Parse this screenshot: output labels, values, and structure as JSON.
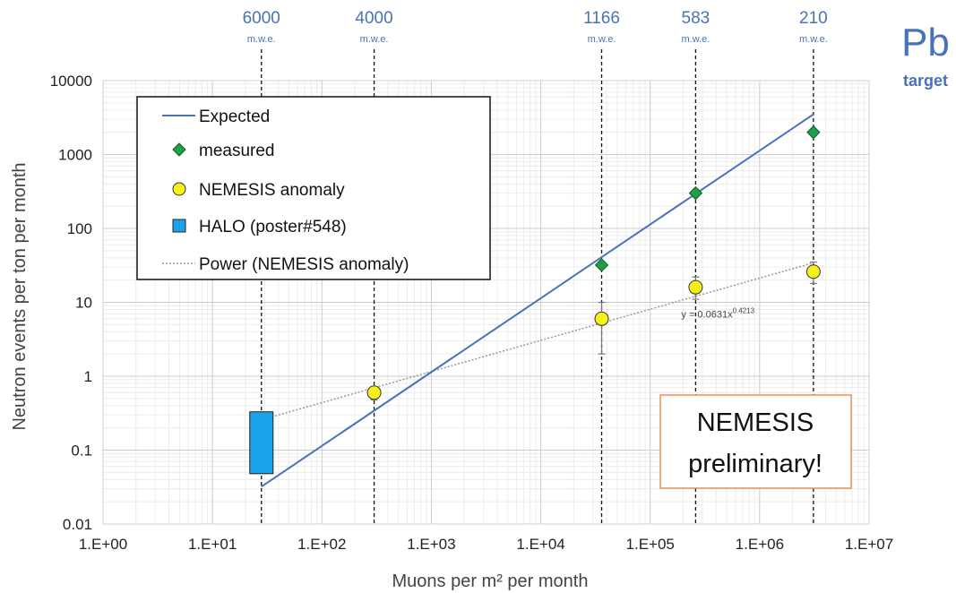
{
  "chart_data": {
    "type": "scatter",
    "title": "",
    "xlabel": "Muons per m² per month",
    "ylabel": "Neutron events per ton per month",
    "x_scale": "log",
    "y_scale": "log",
    "xlim": [
      1,
      10000000
    ],
    "ylim": [
      0.01,
      10000
    ],
    "grid": true,
    "x_tick_labels": [
      "1.E+00",
      "1.E+01",
      "1.E+02",
      "1.E+03",
      "1.E+04",
      "1.E+05",
      "1.E+06",
      "1.E+07"
    ],
    "y_tick_labels": [
      "0.01",
      "0.1",
      "1",
      "10",
      "100",
      "1000",
      "10000"
    ],
    "legend_position": "top-left",
    "series": [
      {
        "name": "Expected",
        "kind": "line",
        "color": "#4a72b8",
        "points": [
          [
            28,
            0.032
          ],
          [
            3100000,
            3500
          ]
        ]
      },
      {
        "name": "measured",
        "kind": "marker",
        "marker": "diamond",
        "color": "#1e9e48",
        "points": [
          [
            36000,
            32
          ],
          [
            260000,
            300
          ],
          [
            3100000,
            2000
          ]
        ]
      },
      {
        "name": "NEMESIS anomaly",
        "kind": "marker",
        "marker": "circle",
        "color": "#f7f01a",
        "points": [
          {
            "x": 300,
            "y": 0.6,
            "y_err_low": 0.48,
            "y_err_high": 0.72
          },
          {
            "x": 36000,
            "y": 6,
            "y_err_low": 2,
            "y_err_high": 10
          },
          {
            "x": 260000,
            "y": 16,
            "y_err_low": 11,
            "y_err_high": 22
          },
          {
            "x": 3100000,
            "y": 26,
            "y_err_low": 18,
            "y_err_high": 35
          }
        ]
      },
      {
        "name": "HALO (poster#548)",
        "kind": "box",
        "color": "#1aa3e8",
        "x": 28,
        "y_low": 0.048,
        "y_high": 0.33
      },
      {
        "name": "Power (NEMESIS anomaly)",
        "kind": "trendline",
        "color": "#999999",
        "coefficient": 0.0631,
        "exponent": 0.4213,
        "x_range": [
          28,
          3100000
        ]
      }
    ],
    "trendline_label": {
      "prefix": "y = 0.0631x",
      "exponent": "0.4213",
      "x": 260000,
      "y": 6.2
    },
    "depth_markers": [
      {
        "value": "6000",
        "unit": "m.w.e.",
        "x": 28
      },
      {
        "value": "4000",
        "unit": "m.w.e.",
        "x": 300
      },
      {
        "value": "1166",
        "unit": "m.w.e.",
        "x": 36000
      },
      {
        "value": "583",
        "unit": "m.w.e.",
        "x": 260000
      },
      {
        "value": "210",
        "unit": "m.w.e.",
        "x": 3100000
      }
    ],
    "target_label": {
      "element": "Pb",
      "caption": "target"
    },
    "annotation": {
      "lines": [
        "NEMESIS",
        "preliminary!"
      ],
      "border_color": "#e0925a"
    }
  }
}
